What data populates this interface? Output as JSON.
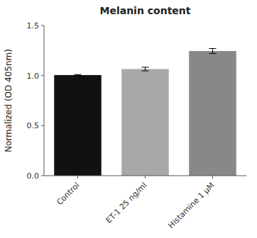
{
  "chart_data": {
    "type": "bar",
    "title": "Melanin content",
    "categories": [
      "Control",
      "ET-1 25 ng/ml",
      "Histamine 1 μM"
    ],
    "values": [
      1.005,
      1.065,
      1.245
    ],
    "errors": [
      0.005,
      0.018,
      0.025
    ],
    "colors": [
      "#111111",
      "#a8a8a8",
      "#888888"
    ],
    "ylabel": "Normalized (OD 405nm)",
    "ylim": [
      0,
      1.5
    ],
    "yticks": [
      {
        "value": 0,
        "label": "0.0"
      },
      {
        "value": 0.5,
        "label": "0.5"
      },
      {
        "value": 1.0,
        "label": "1.0"
      },
      {
        "value": 1.5,
        "label": "1.5"
      }
    ],
    "grid": false
  }
}
